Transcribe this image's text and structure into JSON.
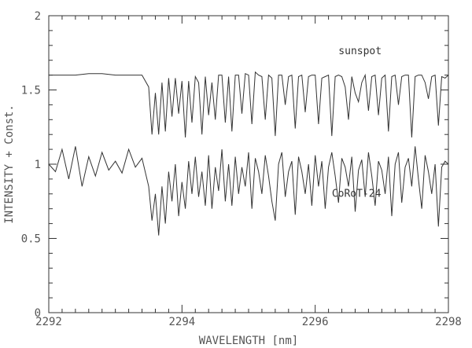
{
  "chart_data": {
    "type": "line",
    "xlabel": "WAVELENGTH [nm]",
    "ylabel": "INTENSITY + Const.",
    "xlim": [
      2292,
      2298
    ],
    "ylim": [
      0,
      2
    ],
    "x_ticks_major": [
      2292,
      2294,
      2296,
      2298
    ],
    "x_tick_labels": [
      "2292",
      "2294",
      "2296",
      "2298"
    ],
    "y_ticks_major": [
      0,
      0.5,
      1,
      1.5,
      2
    ],
    "y_tick_labels": [
      "0",
      "0.5",
      "1",
      "1.5",
      "2"
    ],
    "grid": false,
    "annotations": [
      {
        "text": "sunspot",
        "x": 2296.35,
        "y": 1.74
      },
      {
        "text": "CoRoT-24",
        "x": 2296.25,
        "y": 0.78
      }
    ],
    "series": [
      {
        "name": "sunspot",
        "x": [
          2292.0,
          2292.2,
          2292.4,
          2292.6,
          2292.8,
          2293.0,
          2293.2,
          2293.4,
          2293.5,
          2293.55,
          2293.6,
          2293.65,
          2293.7,
          2293.75,
          2293.8,
          2293.85,
          2293.9,
          2293.95,
          2294.0,
          2294.05,
          2294.1,
          2294.15,
          2294.2,
          2294.25,
          2294.3,
          2294.35,
          2294.4,
          2294.45,
          2294.5,
          2294.55,
          2294.6,
          2294.65,
          2294.7,
          2294.75,
          2294.8,
          2294.85,
          2294.9,
          2294.95,
          2295.0,
          2295.05,
          2295.1,
          2295.15,
          2295.2,
          2295.25,
          2295.3,
          2295.35,
          2295.4,
          2295.45,
          2295.5,
          2295.55,
          2295.6,
          2295.65,
          2295.7,
          2295.75,
          2295.8,
          2295.85,
          2295.9,
          2295.95,
          2296.0,
          2296.05,
          2296.1,
          2296.15,
          2296.2,
          2296.25,
          2296.3,
          2296.35,
          2296.4,
          2296.45,
          2296.5,
          2296.55,
          2296.6,
          2296.65,
          2296.7,
          2296.75,
          2296.8,
          2296.85,
          2296.9,
          2296.95,
          2297.0,
          2297.05,
          2297.1,
          2297.15,
          2297.2,
          2297.25,
          2297.3,
          2297.35,
          2297.4,
          2297.45,
          2297.5,
          2297.55,
          2297.6,
          2297.65,
          2297.7,
          2297.75,
          2297.8,
          2297.85,
          2297.9,
          2297.95,
          2298.0
        ],
        "y": [
          1.6,
          1.6,
          1.6,
          1.61,
          1.61,
          1.6,
          1.6,
          1.6,
          1.52,
          1.2,
          1.48,
          1.2,
          1.55,
          1.22,
          1.58,
          1.32,
          1.58,
          1.34,
          1.56,
          1.18,
          1.56,
          1.28,
          1.59,
          1.55,
          1.2,
          1.59,
          1.33,
          1.55,
          1.3,
          1.6,
          1.6,
          1.28,
          1.59,
          1.22,
          1.6,
          1.6,
          1.34,
          1.61,
          1.6,
          1.27,
          1.62,
          1.6,
          1.59,
          1.3,
          1.6,
          1.58,
          1.19,
          1.6,
          1.6,
          1.4,
          1.59,
          1.6,
          1.24,
          1.59,
          1.6,
          1.35,
          1.59,
          1.6,
          1.6,
          1.27,
          1.58,
          1.59,
          1.6,
          1.19,
          1.59,
          1.6,
          1.59,
          1.52,
          1.3,
          1.59,
          1.48,
          1.42,
          1.55,
          1.6,
          1.36,
          1.59,
          1.6,
          1.33,
          1.58,
          1.6,
          1.22,
          1.59,
          1.6,
          1.4,
          1.59,
          1.6,
          1.6,
          1.18,
          1.59,
          1.6,
          1.6,
          1.55,
          1.44,
          1.59,
          1.6,
          1.26,
          1.59,
          1.58,
          1.6
        ]
      },
      {
        "name": "CoRoT-24",
        "x": [
          2292.0,
          2292.1,
          2292.2,
          2292.3,
          2292.4,
          2292.5,
          2292.6,
          2292.7,
          2292.8,
          2292.9,
          2293.0,
          2293.1,
          2293.2,
          2293.3,
          2293.4,
          2293.5,
          2293.55,
          2293.6,
          2293.65,
          2293.7,
          2293.75,
          2293.8,
          2293.85,
          2293.9,
          2293.95,
          2294.0,
          2294.05,
          2294.1,
          2294.15,
          2294.2,
          2294.25,
          2294.3,
          2294.35,
          2294.4,
          2294.45,
          2294.5,
          2294.55,
          2294.6,
          2294.65,
          2294.7,
          2294.75,
          2294.8,
          2294.85,
          2294.9,
          2294.95,
          2295.0,
          2295.05,
          2295.1,
          2295.15,
          2295.2,
          2295.25,
          2295.3,
          2295.35,
          2295.4,
          2295.45,
          2295.5,
          2295.55,
          2295.6,
          2295.65,
          2295.7,
          2295.75,
          2295.8,
          2295.85,
          2295.9,
          2295.95,
          2296.0,
          2296.05,
          2296.1,
          2296.15,
          2296.2,
          2296.25,
          2296.3,
          2296.35,
          2296.4,
          2296.45,
          2296.5,
          2296.55,
          2296.6,
          2296.65,
          2296.7,
          2296.75,
          2296.8,
          2296.85,
          2296.9,
          2296.95,
          2297.0,
          2297.05,
          2297.1,
          2297.15,
          2297.2,
          2297.25,
          2297.3,
          2297.35,
          2297.4,
          2297.45,
          2297.5,
          2297.55,
          2297.6,
          2297.65,
          2297.7,
          2297.75,
          2297.8,
          2297.85,
          2297.9,
          2297.95,
          2298.0
        ],
        "y": [
          1.0,
          0.95,
          1.1,
          0.9,
          1.12,
          0.85,
          1.05,
          0.92,
          1.08,
          0.96,
          1.02,
          0.94,
          1.1,
          0.98,
          1.04,
          0.85,
          0.62,
          0.8,
          0.52,
          0.85,
          0.6,
          0.95,
          0.75,
          1.0,
          0.65,
          0.88,
          0.7,
          1.02,
          0.8,
          1.05,
          0.78,
          0.95,
          0.72,
          1.06,
          0.7,
          0.98,
          0.82,
          1.1,
          0.75,
          1.0,
          0.72,
          1.05,
          0.8,
          0.98,
          0.85,
          1.08,
          0.7,
          1.04,
          0.95,
          0.8,
          1.06,
          0.92,
          0.75,
          0.62,
          1.0,
          1.08,
          0.78,
          0.95,
          1.02,
          0.66,
          1.05,
          0.95,
          0.8,
          1.0,
          0.72,
          1.06,
          0.85,
          1.02,
          0.7,
          0.98,
          1.08,
          0.92,
          0.74,
          1.04,
          0.98,
          0.85,
          1.05,
          0.68,
          0.96,
          1.03,
          0.78,
          1.08,
          0.92,
          0.72,
          1.02,
          0.96,
          0.8,
          1.05,
          0.65,
          1.0,
          1.08,
          0.74,
          0.98,
          1.04,
          0.85,
          1.12,
          0.9,
          0.7,
          1.06,
          0.95,
          0.8,
          1.0,
          0.58,
          0.98,
          1.02,
          1.0
        ]
      }
    ]
  }
}
